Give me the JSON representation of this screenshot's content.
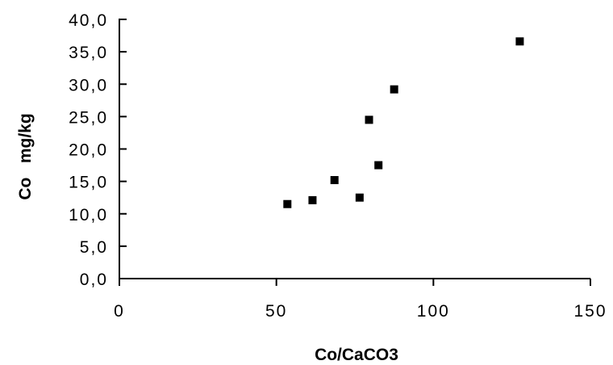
{
  "chart_data": {
    "type": "scatter",
    "title": "",
    "xlabel": "Co/CaCO3",
    "ylabel": "Co   mg/kg",
    "xlim": [
      0,
      150
    ],
    "ylim": [
      0,
      40
    ],
    "x_ticks": [
      0,
      50,
      100,
      150
    ],
    "x_tick_labels": [
      "0",
      "50",
      "100",
      "150"
    ],
    "y_ticks": [
      0,
      5,
      10,
      15,
      20,
      25,
      30,
      35,
      40
    ],
    "y_tick_labels": [
      "0,0",
      "5,0",
      "10,0",
      "15,0",
      "20,0",
      "25,0",
      "30,0",
      "35,0",
      "40,0"
    ],
    "grid": false,
    "legend": "none",
    "marker": "square",
    "marker_color": "#000000",
    "series": [
      {
        "points": [
          {
            "x": 53.5,
            "y": 11.5
          },
          {
            "x": 61.5,
            "y": 12.1
          },
          {
            "x": 68.5,
            "y": 15.2
          },
          {
            "x": 76.5,
            "y": 12.5
          },
          {
            "x": 79.5,
            "y": 24.5
          },
          {
            "x": 82.5,
            "y": 17.5
          },
          {
            "x": 87.5,
            "y": 29.2
          },
          {
            "x": 127.5,
            "y": 36.6
          }
        ]
      }
    ]
  }
}
